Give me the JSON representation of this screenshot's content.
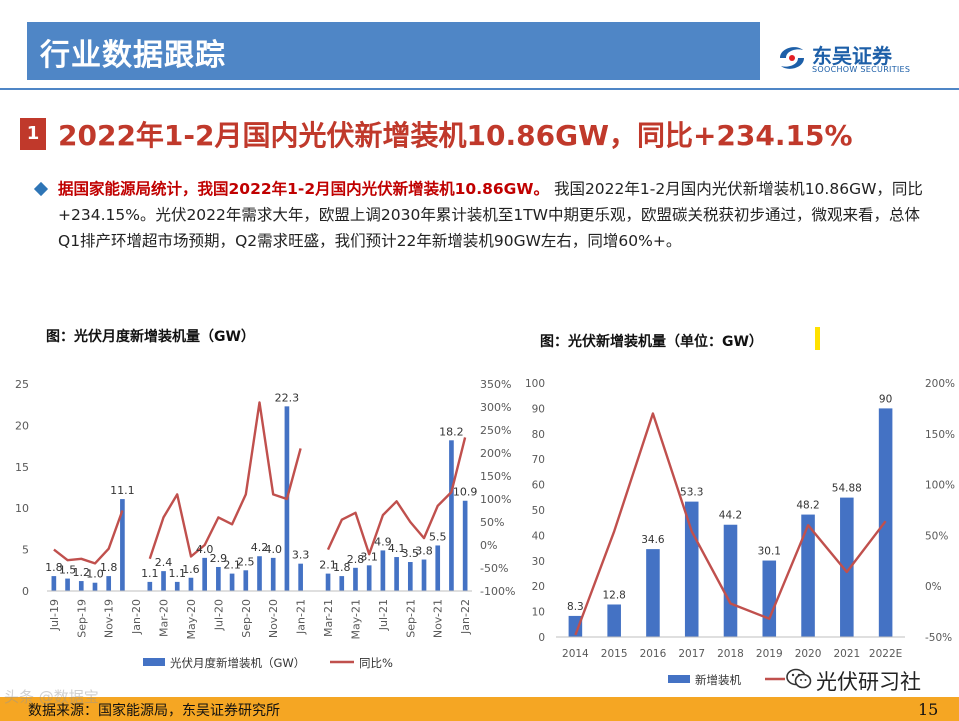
{
  "header": {
    "title": "行业数据跟踪"
  },
  "logo": {
    "name_cn": "东吴证券",
    "name_en": "SOOCHOW SECURITIES",
    "mark_text": "SCS"
  },
  "section": {
    "number": "1",
    "headline": "2022年1-2月国内光伏新增装机10.86GW，同比+234.15%"
  },
  "paragraph": {
    "lead": "据国家能源局统计，我国2022年1-2月国内光伏新增装机10.86GW。",
    "body": "我国2022年1-2月国内光伏新增装机10.86GW，同比+234.15%。光伏2022年需求大年，欧盟上调2030年累计装机至1TW中期更乐观，欧盟碳关税获初步通过，微观来看，总体Q1排产环增超市场预期，Q2需求旺盛，我们预计22年新增装机90GW左右，同增60%+。"
  },
  "chart_titles": {
    "left": "图：光伏月度新增装机量（GW）",
    "right": "图：光伏新增装机量（单位：GW）"
  },
  "footer": {
    "source": "数据来源：国家能源局，东吴证券研究所",
    "page": "15"
  },
  "watermark": {
    "left": "头条 @数据宝",
    "right": "光伏研习社"
  },
  "colors": {
    "header": "#4f86c6",
    "accent_red": "#c0392b",
    "bar": "#4472c4",
    "line": "#c0504d",
    "footer": "#f5a623"
  },
  "chart_data": [
    {
      "type": "bar+line",
      "title": "图：光伏月度新增装机量（GW）",
      "x_tick_labels": [
        "Jul-19",
        "Sep-19",
        "Nov-19",
        "Jan-20",
        "Mar-20",
        "May-20",
        "Jul-20",
        "Sep-20",
        "Nov-20",
        "Jan-21",
        "Mar-21",
        "May-21",
        "Jul-21",
        "Sep-21",
        "Nov-21",
        "Jan-22"
      ],
      "x": [
        "Jul-19",
        "Aug-19",
        "Sep-19",
        "Oct-19",
        "Nov-19",
        "Dec-19",
        "Jan-20",
        "Feb-20",
        "Mar-20",
        "Apr-20",
        "May-20",
        "Jun-20",
        "Jul-20",
        "Aug-20",
        "Sep-20",
        "Oct-20",
        "Nov-20",
        "Dec-20",
        "Jan-21",
        "Feb-21",
        "Mar-21",
        "Apr-21",
        "May-21",
        "Jun-21",
        "Jul-21",
        "Aug-21",
        "Sep-21",
        "Oct-21",
        "Nov-21",
        "Dec-21",
        "Jan-22"
      ],
      "series": [
        {
          "name": "光伏月度新增装机（GW）",
          "type": "bar",
          "axis": "left",
          "values": [
            1.8,
            1.5,
            1.2,
            1.0,
            1.8,
            11.1,
            null,
            1.1,
            2.4,
            1.1,
            1.6,
            4.0,
            2.9,
            2.1,
            2.5,
            4.2,
            4.0,
            22.3,
            3.3,
            null,
            2.1,
            1.8,
            2.8,
            3.1,
            4.9,
            4.1,
            3.5,
            3.8,
            5.5,
            18.2,
            10.9
          ],
          "labels": [
            "1.8",
            "1.5",
            "1.2",
            "1.0",
            "1.8",
            "11.1",
            "",
            "1.1",
            "2.4",
            "1.1",
            "1.6",
            "4.0",
            "2.9",
            "2.1",
            "2.5",
            "4.2",
            "4.0",
            "22.3",
            "3.3",
            "",
            "2.1",
            "1.8",
            "2.8",
            "3.1",
            "4.9",
            "4.1",
            "3.5",
            "3.8",
            "5.5",
            "18.2",
            "10.9"
          ]
        },
        {
          "name": "同比%",
          "type": "line",
          "axis": "right",
          "values": [
            -10,
            -33,
            -30,
            -40,
            -8,
            75,
            null,
            -30,
            60,
            110,
            -25,
            0,
            60,
            45,
            110,
            310,
            110,
            100,
            210,
            null,
            -10,
            55,
            70,
            -20,
            65,
            95,
            50,
            15,
            85,
            115,
            234
          ]
        }
      ],
      "yleft": {
        "min": 0,
        "max": 25,
        "ticks": [
          0,
          5,
          10,
          15,
          20,
          25
        ]
      },
      "yright": {
        "min": -100,
        "max": 350,
        "ticks": [
          -100,
          -50,
          0,
          50,
          100,
          150,
          200,
          250,
          300,
          350
        ],
        "unit": "%"
      }
    },
    {
      "type": "bar+line",
      "title": "图：光伏新增装机量（单位：GW）",
      "categories": [
        "2014",
        "2015",
        "2016",
        "2017",
        "2018",
        "2019",
        "2020",
        "2021",
        "2022E"
      ],
      "series": [
        {
          "name": "新增装机",
          "type": "bar",
          "axis": "left",
          "values": [
            8.3,
            12.8,
            34.6,
            53.3,
            44.2,
            30.1,
            48.2,
            54.88,
            90
          ],
          "labels": [
            "8.3",
            "12.8",
            "34.6",
            "53.3",
            "44.2",
            "30.1",
            "48.2",
            "54.88",
            "90"
          ]
        },
        {
          "name": "同比",
          "type": "line",
          "axis": "right",
          "values": [
            -48,
            54,
            170,
            54,
            -17,
            -32,
            60,
            14,
            64
          ]
        }
      ],
      "yleft": {
        "min": 0,
        "max": 100,
        "ticks": [
          0,
          10,
          20,
          30,
          40,
          50,
          60,
          70,
          80,
          90,
          100
        ]
      },
      "yright": {
        "min": -50,
        "max": 200,
        "ticks": [
          -50,
          0,
          50,
          100,
          150,
          200
        ],
        "unit": "%"
      }
    }
  ]
}
